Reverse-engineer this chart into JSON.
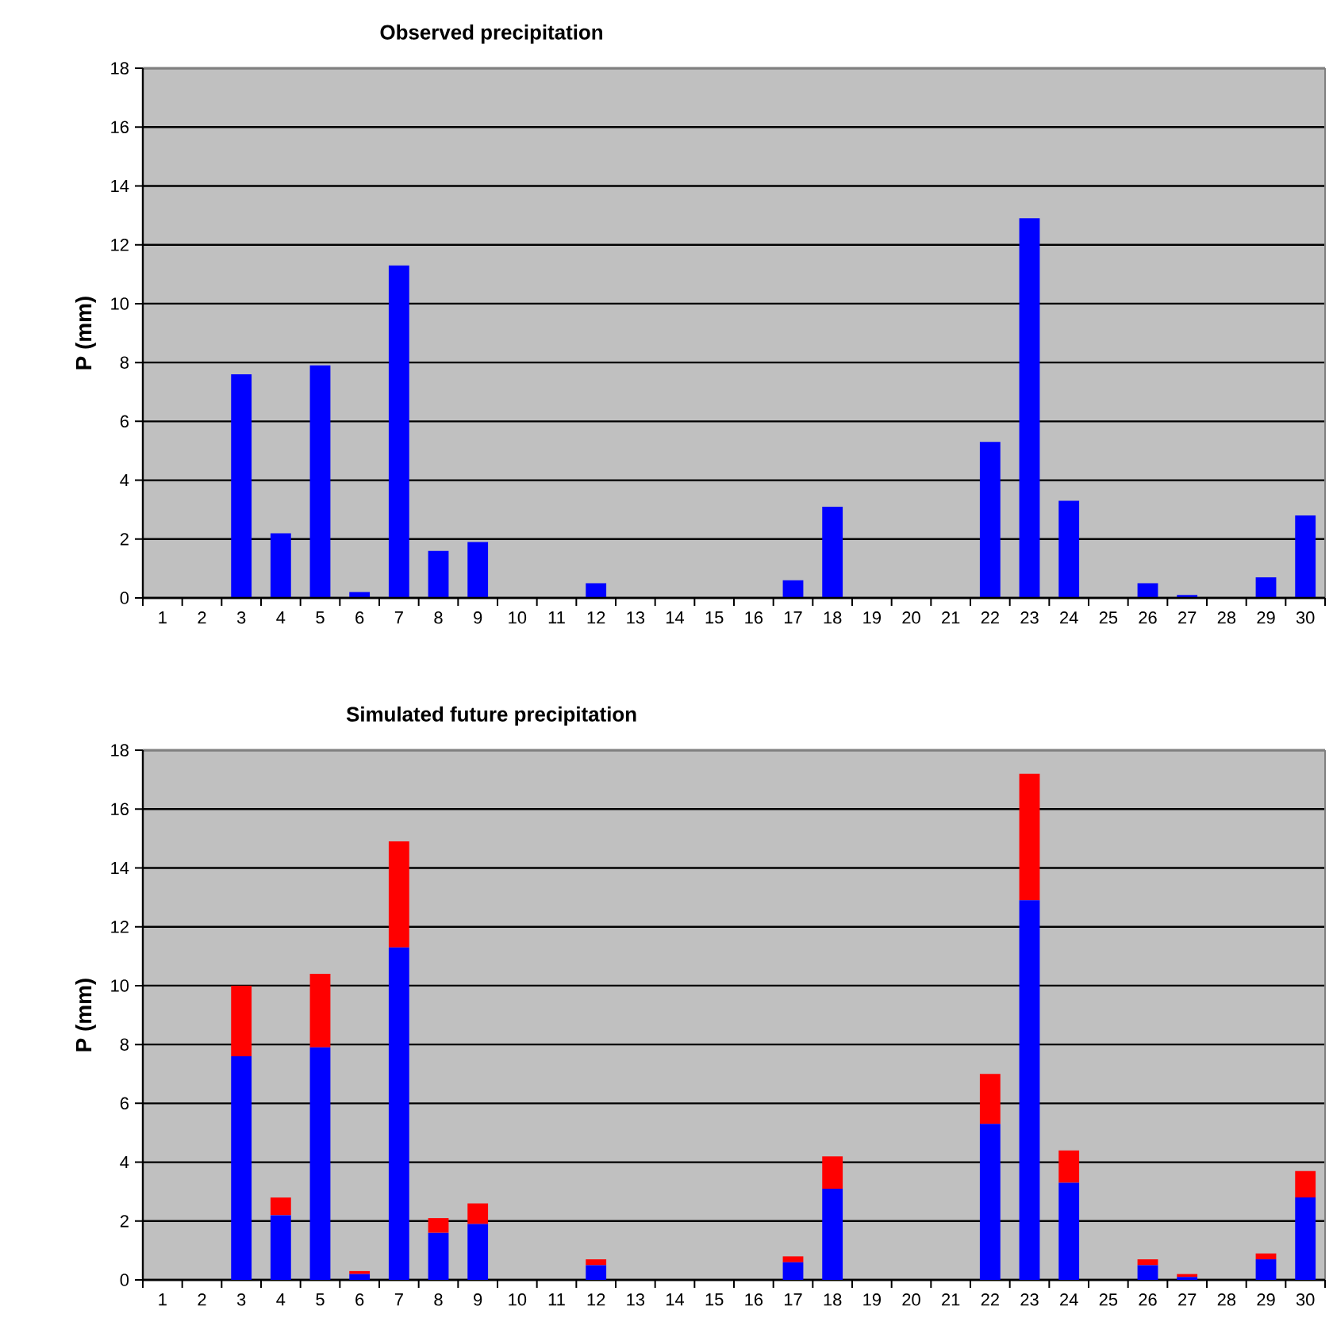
{
  "chart_data": [
    {
      "type": "bar",
      "title": "Observed precipitation",
      "ylabel": "P (mm)",
      "categories": [
        "1",
        "2",
        "3",
        "4",
        "5",
        "6",
        "7",
        "8",
        "9",
        "10",
        "11",
        "12",
        "13",
        "14",
        "15",
        "16",
        "17",
        "18",
        "19",
        "20",
        "21",
        "22",
        "23",
        "24",
        "25",
        "26",
        "27",
        "28",
        "29",
        "30"
      ],
      "series": [
        {
          "color": "#0000ff",
          "values": [
            0,
            0,
            7.6,
            2.2,
            7.9,
            0.2,
            11.3,
            1.6,
            1.9,
            0,
            0,
            0.5,
            0,
            0,
            0,
            0,
            0.6,
            3.1,
            0,
            0,
            0,
            5.3,
            12.9,
            3.3,
            0,
            0.5,
            0.1,
            0,
            0.7,
            2.8
          ]
        }
      ],
      "ylim": [
        0,
        18
      ],
      "yticks": [
        0,
        2,
        4,
        6,
        8,
        10,
        12,
        14,
        16,
        18
      ],
      "grid": "y"
    },
    {
      "type": "bar",
      "title": "Simulated future precipitation",
      "ylabel": "P (mm)",
      "stacked": true,
      "categories": [
        "1",
        "2",
        "3",
        "4",
        "5",
        "6",
        "7",
        "8",
        "9",
        "10",
        "11",
        "12",
        "13",
        "14",
        "15",
        "16",
        "17",
        "18",
        "19",
        "20",
        "21",
        "22",
        "23",
        "24",
        "25",
        "26",
        "27",
        "28",
        "29",
        "30"
      ],
      "series": [
        {
          "color": "#0000ff",
          "values": [
            0,
            0,
            7.6,
            2.2,
            7.9,
            0.2,
            11.3,
            1.6,
            1.9,
            0,
            0,
            0.5,
            0,
            0,
            0,
            0,
            0.6,
            3.1,
            0,
            0,
            0,
            5.3,
            12.9,
            3.3,
            0,
            0.5,
            0.1,
            0,
            0.7,
            2.8
          ]
        },
        {
          "color": "#ff0000",
          "values": [
            0,
            0,
            2.4,
            0.6,
            2.5,
            0.1,
            3.6,
            0.5,
            0.7,
            0,
            0,
            0.2,
            0,
            0,
            0,
            0,
            0.2,
            1.1,
            0,
            0,
            0,
            1.7,
            4.3,
            1.1,
            0,
            0.2,
            0.1,
            0,
            0.2,
            0.9
          ]
        }
      ],
      "ylim": [
        0,
        18
      ],
      "yticks": [
        0,
        2,
        4,
        6,
        8,
        10,
        12,
        14,
        16,
        18
      ],
      "grid": "y"
    }
  ]
}
